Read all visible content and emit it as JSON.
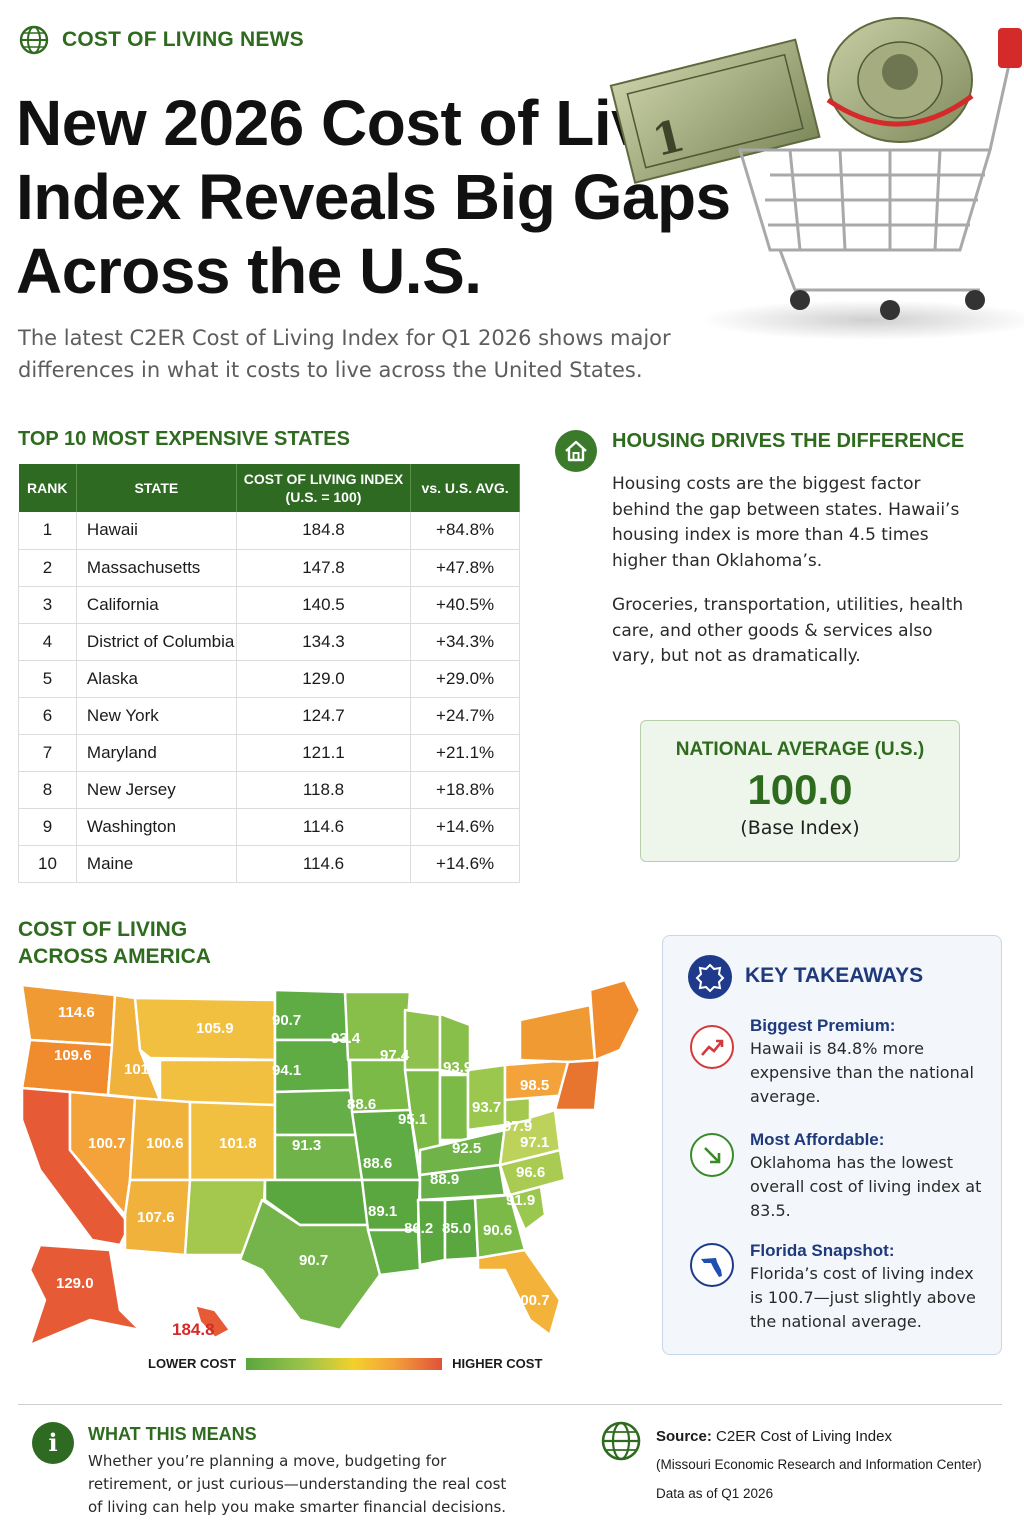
{
  "colors": {
    "brand_green": "#2f6b1f",
    "table_header": "#2e6a22",
    "navy": "#1f3a7a",
    "high_cost": "#e0523a",
    "low_cost": "#5aa73e"
  },
  "header": {
    "kicker": "COST OF LIVING NEWS",
    "kicker_icon": "globe-icon",
    "headline": "New 2026 Cost of Living Index Reveals Big Gaps Across the U.S.",
    "subtitle": "The latest C2ER Cost of Living Index for Q1 2026 shows major differences in what it costs to live across the United States.",
    "hero_image": "money-in-shopping-cart"
  },
  "table": {
    "title": "TOP 10 MOST EXPENSIVE STATES",
    "headers": {
      "rank": "RANK",
      "state": "STATE",
      "index": "COST OF LIVING INDEX\n(U.S. = 100)",
      "vs": "vs. U.S. AVG."
    },
    "rows": [
      {
        "rank": "1",
        "state": "Hawaii",
        "index": "184.8",
        "vs": "+84.8%"
      },
      {
        "rank": "2",
        "state": "Massachusetts",
        "index": "147.8",
        "vs": "+47.8%"
      },
      {
        "rank": "3",
        "state": "California",
        "index": "140.5",
        "vs": "+40.5%"
      },
      {
        "rank": "4",
        "state": "District of Columbia",
        "index": "134.3",
        "vs": "+34.3%"
      },
      {
        "rank": "5",
        "state": "Alaska",
        "index": "129.0",
        "vs": "+29.0%"
      },
      {
        "rank": "6",
        "state": "New York",
        "index": "124.7",
        "vs": "+24.7%"
      },
      {
        "rank": "7",
        "state": "Maryland",
        "index": "121.1",
        "vs": "+21.1%"
      },
      {
        "rank": "8",
        "state": "New Jersey",
        "index": "118.8",
        "vs": "+18.8%"
      },
      {
        "rank": "9",
        "state": "Washington",
        "index": "114.6",
        "vs": "+14.6%"
      },
      {
        "rank": "10",
        "state": "Maine",
        "index": "114.6",
        "vs": "+14.6%"
      }
    ]
  },
  "housing": {
    "icon": "house-icon",
    "title": "HOUSING DRIVES THE DIFFERENCE",
    "p1": "Housing costs are the biggest factor behind the gap between states. Hawaii’s housing index is more than 4.5 times higher than Oklahoma’s.",
    "p2": "Groceries, transportation, utilities, health care, and other goods & services also vary, but not as dramatically."
  },
  "national": {
    "label": "NATIONAL AVERAGE (U.S.)",
    "value": "100.0",
    "sub": "(Base Index)"
  },
  "map": {
    "title": "COST OF LIVING ACROSS AMERICA",
    "labels": [
      "114.6",
      "109.6",
      "105.9",
      "90.7",
      "93.4",
      "97.4",
      "94.1",
      "101.7",
      "93.9",
      "98.5",
      "88.6",
      "95.1",
      "93.7",
      "97.9",
      "97.1",
      "100.7",
      "100.6",
      "101.8",
      "91.3",
      "92.5",
      "88.6",
      "88.9",
      "96.6",
      "107.6",
      "89.1",
      "91.9",
      "86.2",
      "85.0",
      "90.6",
      "90.7",
      "129.0",
      "184.8",
      "100.7"
    ],
    "legend_low": "LOWER COST",
    "legend_high": "HIGHER COST"
  },
  "takeaways": {
    "icon": "badge-icon",
    "title": "KEY TAKEAWAYS",
    "items": [
      {
        "icon": "trend-up-icon",
        "head": "Biggest Premium:",
        "body": "Hawaii is 84.8% more expensive than the national average."
      },
      {
        "icon": "arrow-down-icon",
        "head": "Most Affordable:",
        "body": "Oklahoma has the lowest overall cost of living index at 83.5."
      },
      {
        "icon": "florida-icon",
        "head": "Florida Snapshot:",
        "body": "Florida’s cost of living index is 100.7—just slightly above the national average."
      }
    ]
  },
  "footer": {
    "title": "WHAT THIS MEANS",
    "body": "Whether you’re planning a move, budgeting for retirement, or just curious—understanding the real cost of living can help you make smarter financial decisions.",
    "source_label": "Source:",
    "source_name": "C2ER Cost of Living Index",
    "source_org": "(Missouri Economic Research and Information Center)",
    "data_as_of": "Data as of Q1 2026"
  }
}
